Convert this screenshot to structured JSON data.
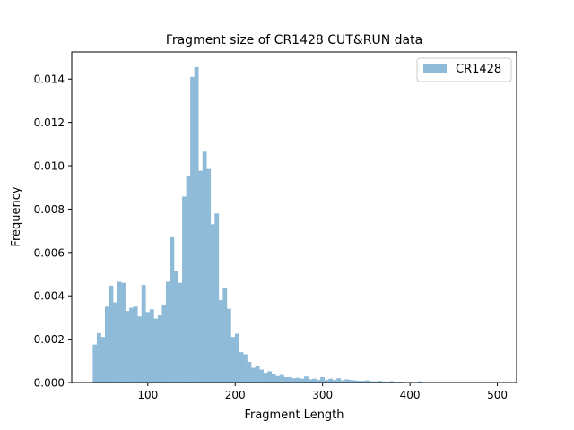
{
  "chart_data": {
    "type": "bar",
    "title": "Fragment size of CR1428 CUT&RUN data",
    "xlabel": "Fragment Length",
    "ylabel": "Frequency",
    "xlim": [
      13,
      522
    ],
    "ylim": [
      0,
      0.01525
    ],
    "xticks": [
      100,
      200,
      300,
      400,
      500
    ],
    "yticks": [
      0.0,
      0.002,
      0.004,
      0.006,
      0.008,
      0.01,
      0.012,
      0.014
    ],
    "ytick_labels": [
      "0.000",
      "0.002",
      "0.004",
      "0.006",
      "0.008",
      "0.010",
      "0.012",
      "0.014"
    ],
    "grid": false,
    "legend_position": "top-right",
    "bin_start": 37,
    "bin_width": 4.65,
    "series": [
      {
        "name": "CR1428",
        "color": "#8fbbd9",
        "values": [
          0.00175,
          0.00228,
          0.0021,
          0.0035,
          0.00447,
          0.0037,
          0.00465,
          0.0046,
          0.0033,
          0.00345,
          0.0035,
          0.00305,
          0.0045,
          0.00325,
          0.00338,
          0.00295,
          0.0031,
          0.0036,
          0.00465,
          0.0067,
          0.00515,
          0.0046,
          0.00858,
          0.00955,
          0.0141,
          0.01455,
          0.00977,
          0.01065,
          0.00985,
          0.0073,
          0.0078,
          0.0038,
          0.00438,
          0.0034,
          0.0021,
          0.00225,
          0.0014,
          0.0013,
          0.00095,
          0.00068,
          0.00075,
          0.0006,
          0.00045,
          0.00052,
          0.0004,
          0.0003,
          0.00035,
          0.00025,
          0.00025,
          0.0002,
          0.00022,
          0.00018,
          0.00028,
          0.00015,
          0.00018,
          0.00012,
          0.00025,
          0.00012,
          0.00018,
          0.00012,
          0.0002,
          0.0001,
          0.00015,
          0.00012,
          0.0001,
          8e-05,
          8e-05,
          0.0001,
          6e-05,
          5e-05,
          8e-05,
          5e-05,
          4e-05,
          6e-05,
          3e-05,
          4e-05,
          3e-05,
          2e-05,
          3e-05,
          2e-05,
          5e-05,
          2e-05,
          2e-05,
          1e-05,
          2e-05,
          1e-05,
          1e-05,
          1e-05,
          2e-05,
          1e-05,
          1e-05,
          1e-05,
          1e-05,
          1e-05,
          1e-05,
          1e-05,
          1e-05,
          1e-05,
          1e-05,
          1e-05
        ]
      }
    ]
  }
}
